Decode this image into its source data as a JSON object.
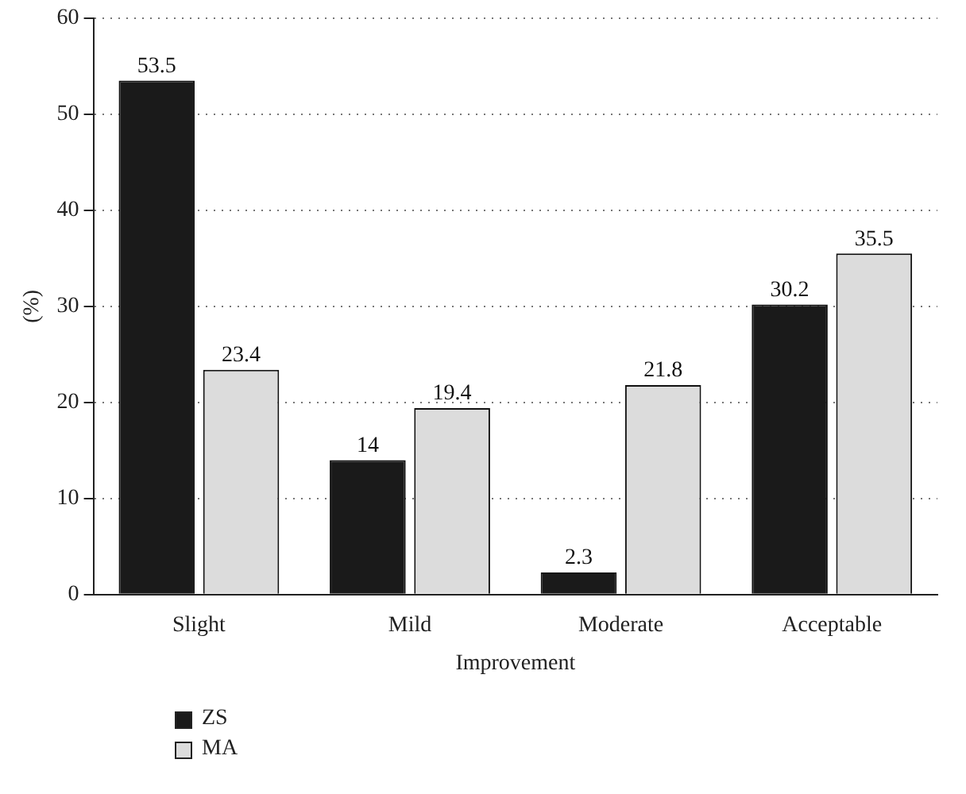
{
  "chart_data": {
    "type": "bar",
    "xlabel": "Improvement",
    "ylabel": "(%)",
    "categories": [
      "Slight",
      "Mild",
      "Moderate",
      "Acceptable"
    ],
    "series": [
      {
        "name": "ZS",
        "color": "#1a1a1a",
        "values": [
          53.5,
          14,
          2.3,
          30.2
        ]
      },
      {
        "name": "MA",
        "color": "#dcdcdc",
        "values": [
          23.4,
          19.4,
          21.8,
          35.5
        ]
      }
    ],
    "ylim": [
      0,
      60
    ],
    "yticks": [
      0,
      10,
      20,
      30,
      40,
      50,
      60
    ],
    "grid": "y",
    "data_labels": true,
    "legend": "bottom left"
  }
}
